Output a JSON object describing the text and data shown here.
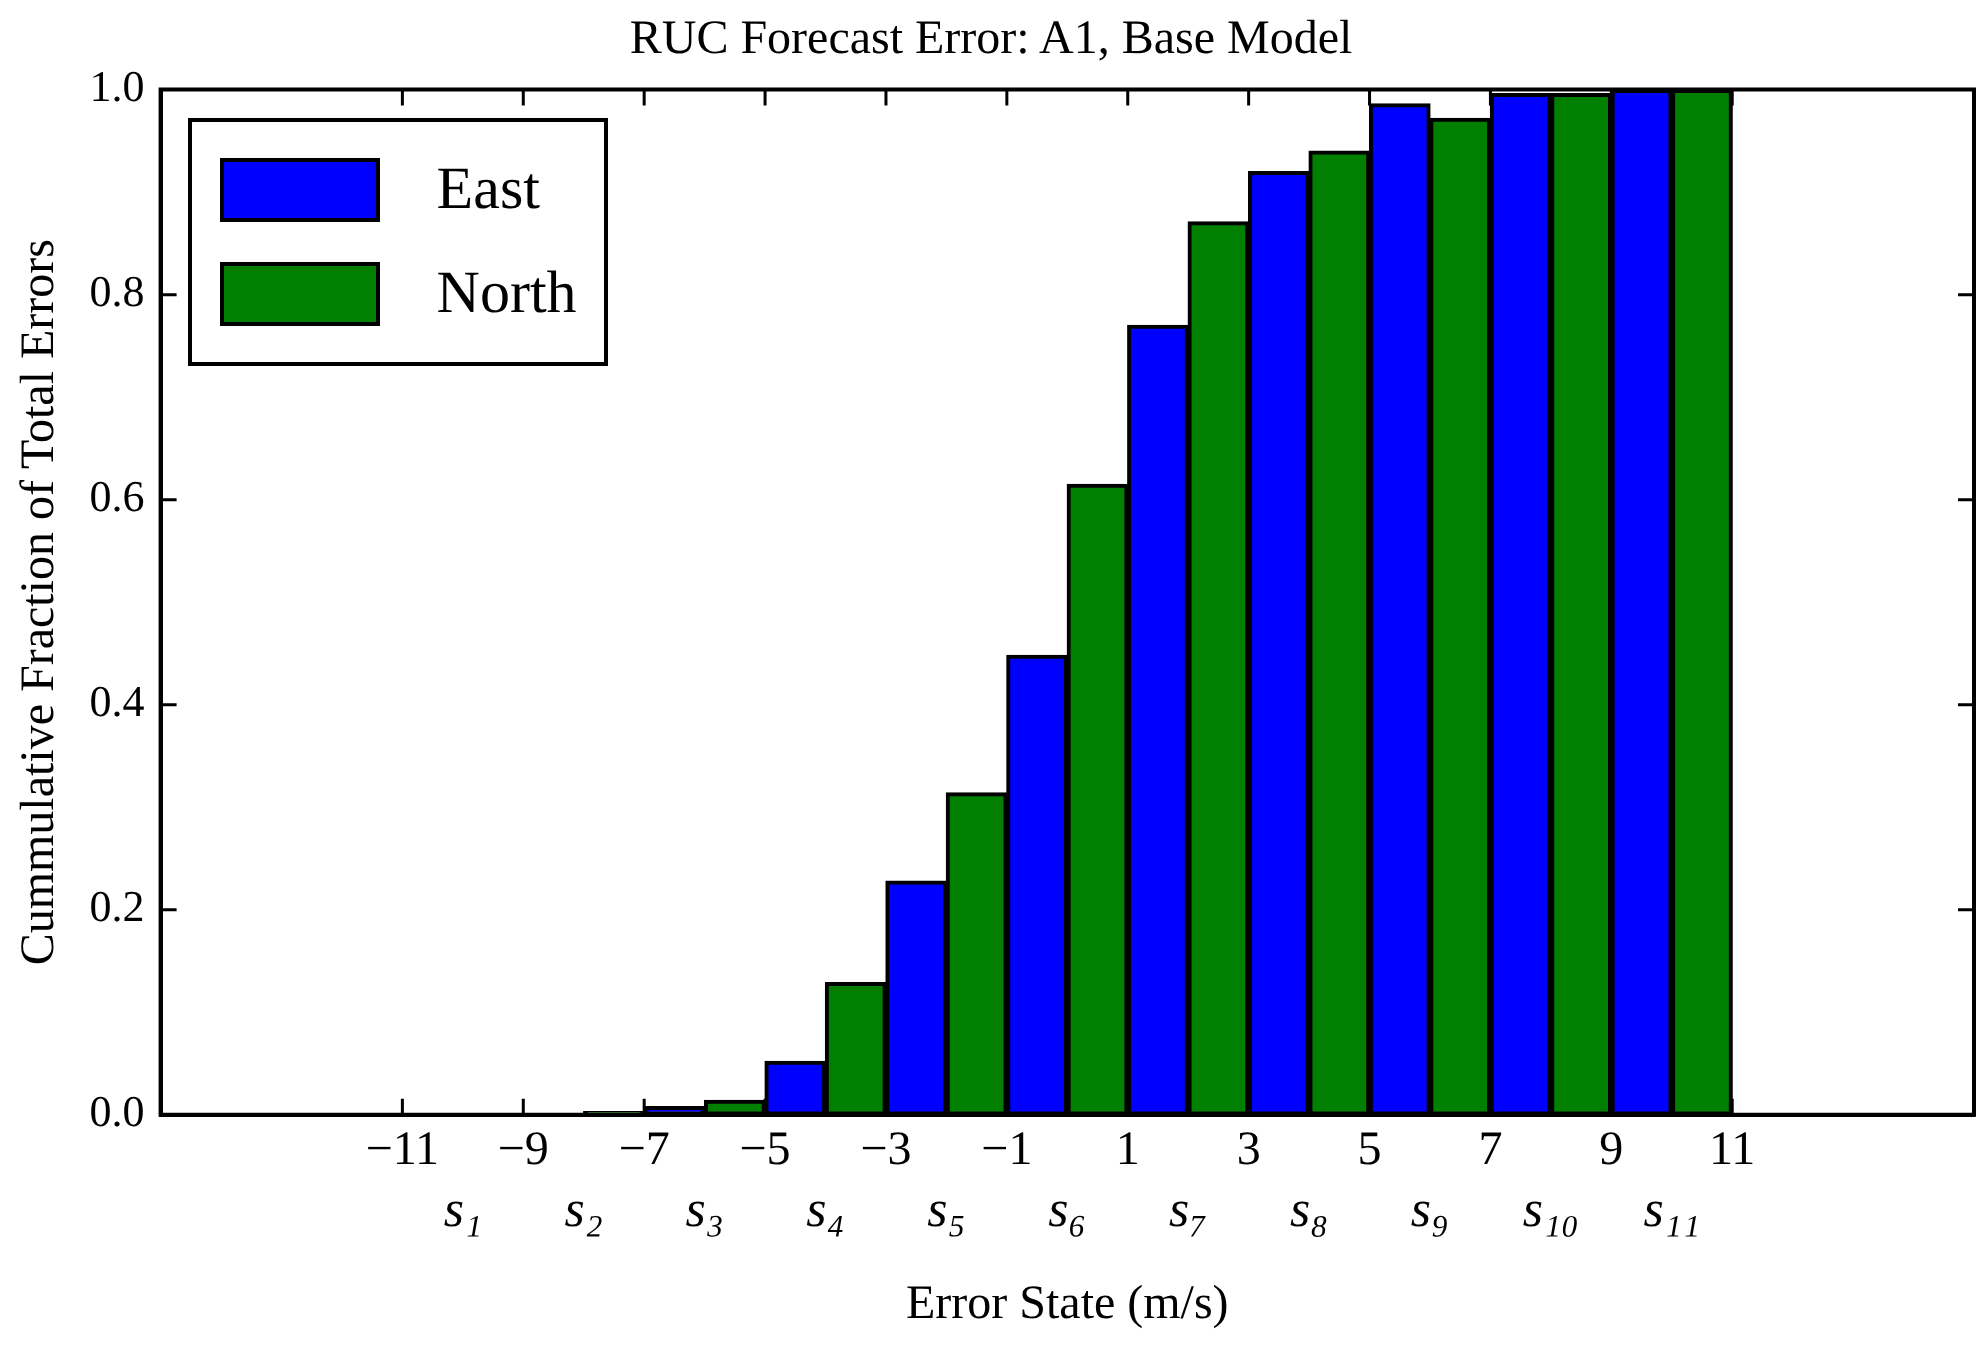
{
  "chart_data": {
    "type": "bar",
    "title": "RUC Forecast Error: A1, Base Model",
    "xlabel": "Error State (m/s)",
    "ylabel": "Cummulative Fraction of Total Errors",
    "series": [
      {
        "name": "East",
        "color": "#0000ff",
        "x": [
          -10.5,
          -8.5,
          -6.5,
          -4.5,
          -2.5,
          -0.5,
          1.5,
          3.5,
          5.5,
          7.5,
          9.5
        ],
        "values": [
          0,
          0,
          0.008,
          0.052,
          0.228,
          0.448,
          0.77,
          0.92,
          0.986,
          0.996,
          1.0
        ]
      },
      {
        "name": "North",
        "color": "#007f00",
        "x": [
          -9.5,
          -7.5,
          -5.5,
          -3.5,
          -1.5,
          0.5,
          2.5,
          4.5,
          6.5,
          8.5,
          10.5
        ],
        "values": [
          0,
          0.003,
          0.014,
          0.129,
          0.314,
          0.615,
          0.871,
          0.94,
          0.972,
          0.996,
          1.0
        ]
      }
    ],
    "xlim": [
      -15,
      15
    ],
    "xticks": [
      {
        "value": -11,
        "label": "−11"
      },
      {
        "value": -9,
        "label": "−9"
      },
      {
        "value": -7,
        "label": "−7"
      },
      {
        "value": -5,
        "label": "−5"
      },
      {
        "value": -3,
        "label": "−3"
      },
      {
        "value": -1,
        "label": "−1"
      },
      1,
      3,
      5,
      7,
      9,
      11
    ],
    "annotations": [
      "s₁",
      "s₂",
      "s₃",
      "s₄",
      "s₅",
      "s₆",
      "s₇",
      "s₈",
      "s₉",
      "s₁₀",
      "s₁₁"
    ],
    "ylim": [
      0,
      1
    ],
    "yticks": [
      {
        "value": 0,
        "label": "0.0"
      },
      {
        "value": 0.2,
        "label": "0.2"
      },
      {
        "value": 0.4,
        "label": "0.4"
      },
      {
        "value": 0.6,
        "label": "0.6"
      },
      {
        "value": 0.8,
        "label": "0.8"
      },
      {
        "value": 1,
        "label": "1.0"
      }
    ],
    "grid": false,
    "legend": "top left"
  }
}
